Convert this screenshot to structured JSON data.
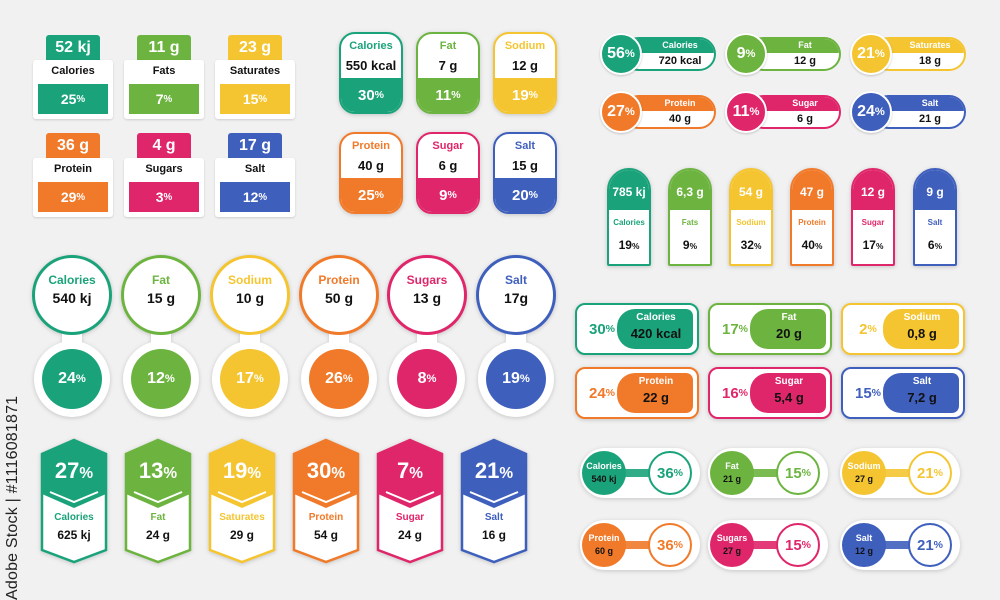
{
  "colors": {
    "green": "#1aa37a",
    "lime": "#6cb43f",
    "yellow": "#f4c531",
    "orange": "#f07a2a",
    "pink": "#e0266a",
    "blue": "#3f5fbd"
  },
  "box_labels": [
    {
      "amount": "52 kj",
      "name": "Calories",
      "percent": "25",
      "color": "#1aa37a"
    },
    {
      "amount": "11 g",
      "name": "Fats",
      "percent": "7",
      "color": "#6cb43f"
    },
    {
      "amount": "23 g",
      "name": "Saturates",
      "percent": "15",
      "color": "#f4c531"
    },
    {
      "amount": "36 g",
      "name": "Protein",
      "percent": "29",
      "color": "#f07a2a"
    },
    {
      "amount": "4 g",
      "name": "Sugars",
      "percent": "3",
      "color": "#e0266a"
    },
    {
      "amount": "17 g",
      "name": "Salt",
      "percent": "12",
      "color": "#3f5fbd"
    }
  ],
  "capsule_labels": [
    {
      "name": "Calories",
      "amount": "550 kcal",
      "percent": "30",
      "color": "#1aa37a"
    },
    {
      "name": "Fat",
      "amount": "7 g",
      "percent": "11",
      "color": "#6cb43f"
    },
    {
      "name": "Sodium",
      "amount": "12 g",
      "percent": "19",
      "color": "#f4c531"
    },
    {
      "name": "Protein",
      "amount": "40 g",
      "percent": "25",
      "color": "#f07a2a"
    },
    {
      "name": "Sugar",
      "amount": "6 g",
      "percent": "9",
      "color": "#e0266a"
    },
    {
      "name": "Salt",
      "amount": "15 g",
      "percent": "20",
      "color": "#3f5fbd"
    }
  ],
  "circle_pill_labels": [
    {
      "percent": "56",
      "name": "Calories",
      "amount": "720 kcal",
      "color": "#1aa37a"
    },
    {
      "percent": "9",
      "name": "Fat",
      "amount": "12 g",
      "color": "#6cb43f"
    },
    {
      "percent": "21",
      "name": "Saturates",
      "amount": "18 g",
      "color": "#f4c531"
    },
    {
      "percent": "27",
      "name": "Protein",
      "amount": "40 g",
      "color": "#f07a2a"
    },
    {
      "percent": "11",
      "name": "Sugar",
      "amount": "6 g",
      "color": "#e0266a"
    },
    {
      "percent": "24",
      "name": "Salt",
      "amount": "21 g",
      "color": "#3f5fbd"
    }
  ],
  "arch_labels": [
    {
      "amount": "785 kj",
      "name": "Calories",
      "percent": "19",
      "color": "#1aa37a"
    },
    {
      "amount": "6,3 g",
      "name": "Fats",
      "percent": "9",
      "color": "#6cb43f"
    },
    {
      "amount": "54 g",
      "name": "Sodium",
      "percent": "32",
      "color": "#f4c531"
    },
    {
      "amount": "47 g",
      "name": "Protein",
      "percent": "40",
      "color": "#f07a2a"
    },
    {
      "amount": "12 g",
      "name": "Sugar",
      "percent": "17",
      "color": "#e0266a"
    },
    {
      "amount": "9 g",
      "name": "Salt",
      "percent": "6",
      "color": "#3f5fbd"
    }
  ],
  "circle_pair_labels": [
    {
      "name": "Calories",
      "amount": "540 kj",
      "percent": "24",
      "color": "#1aa37a"
    },
    {
      "name": "Fat",
      "amount": "15 g",
      "percent": "12",
      "color": "#6cb43f"
    },
    {
      "name": "Sodium",
      "amount": "10 g",
      "percent": "17",
      "color": "#f4c531"
    },
    {
      "name": "Protein",
      "amount": "50 g",
      "percent": "26",
      "color": "#f07a2a"
    },
    {
      "name": "Sugars",
      "amount": "13 g",
      "percent": "8",
      "color": "#e0266a"
    },
    {
      "name": "Salt",
      "amount": "17g",
      "percent": "19",
      "color": "#3f5fbd"
    }
  ],
  "bordered_pill_labels": [
    {
      "percent": "30",
      "name": "Calories",
      "amount": "420 kcal",
      "color": "#1aa37a"
    },
    {
      "percent": "17",
      "name": "Fat",
      "amount": "20 g",
      "color": "#6cb43f"
    },
    {
      "percent": "2",
      "name": "Sodium",
      "amount": "0,8 g",
      "color": "#f4c531"
    },
    {
      "percent": "24",
      "name": "Protein",
      "amount": "22 g",
      "color": "#f07a2a"
    },
    {
      "percent": "16",
      "name": "Sugar",
      "amount": "5,4 g",
      "color": "#e0266a"
    },
    {
      "percent": "15",
      "name": "Salt",
      "amount": "7,2 g",
      "color": "#3f5fbd"
    }
  ],
  "hexagon_labels": [
    {
      "percent": "27",
      "name": "Calories",
      "amount": "625 kj",
      "color": "#1aa37a"
    },
    {
      "percent": "13",
      "name": "Fat",
      "amount": "24 g",
      "color": "#6cb43f"
    },
    {
      "percent": "19",
      "name": "Saturates",
      "amount": "29 g",
      "color": "#f4c531"
    },
    {
      "percent": "30",
      "name": "Protein",
      "amount": "54 g",
      "color": "#f07a2a"
    },
    {
      "percent": "7",
      "name": "Sugar",
      "amount": "24 g",
      "color": "#e0266a"
    },
    {
      "percent": "21",
      "name": "Salt",
      "amount": "16 g",
      "color": "#3f5fbd"
    }
  ],
  "infinity_labels": [
    {
      "name": "Calories",
      "amount": "540 kj",
      "percent": "36",
      "color": "#1aa37a"
    },
    {
      "name": "Fat",
      "amount": "21 g",
      "percent": "15",
      "color": "#6cb43f"
    },
    {
      "name": "Sodium",
      "amount": "27 g",
      "percent": "21",
      "color": "#f4c531"
    },
    {
      "name": "Protein",
      "amount": "60 g",
      "percent": "36",
      "color": "#f07a2a"
    },
    {
      "name": "Sugars",
      "amount": "27 g",
      "percent": "15",
      "color": "#e0266a"
    },
    {
      "name": "Salt",
      "amount": "12 g",
      "percent": "21",
      "color": "#3f5fbd"
    }
  ],
  "percent_symbol": "%",
  "stock_credit": "Adobe Stock | #1116081871"
}
